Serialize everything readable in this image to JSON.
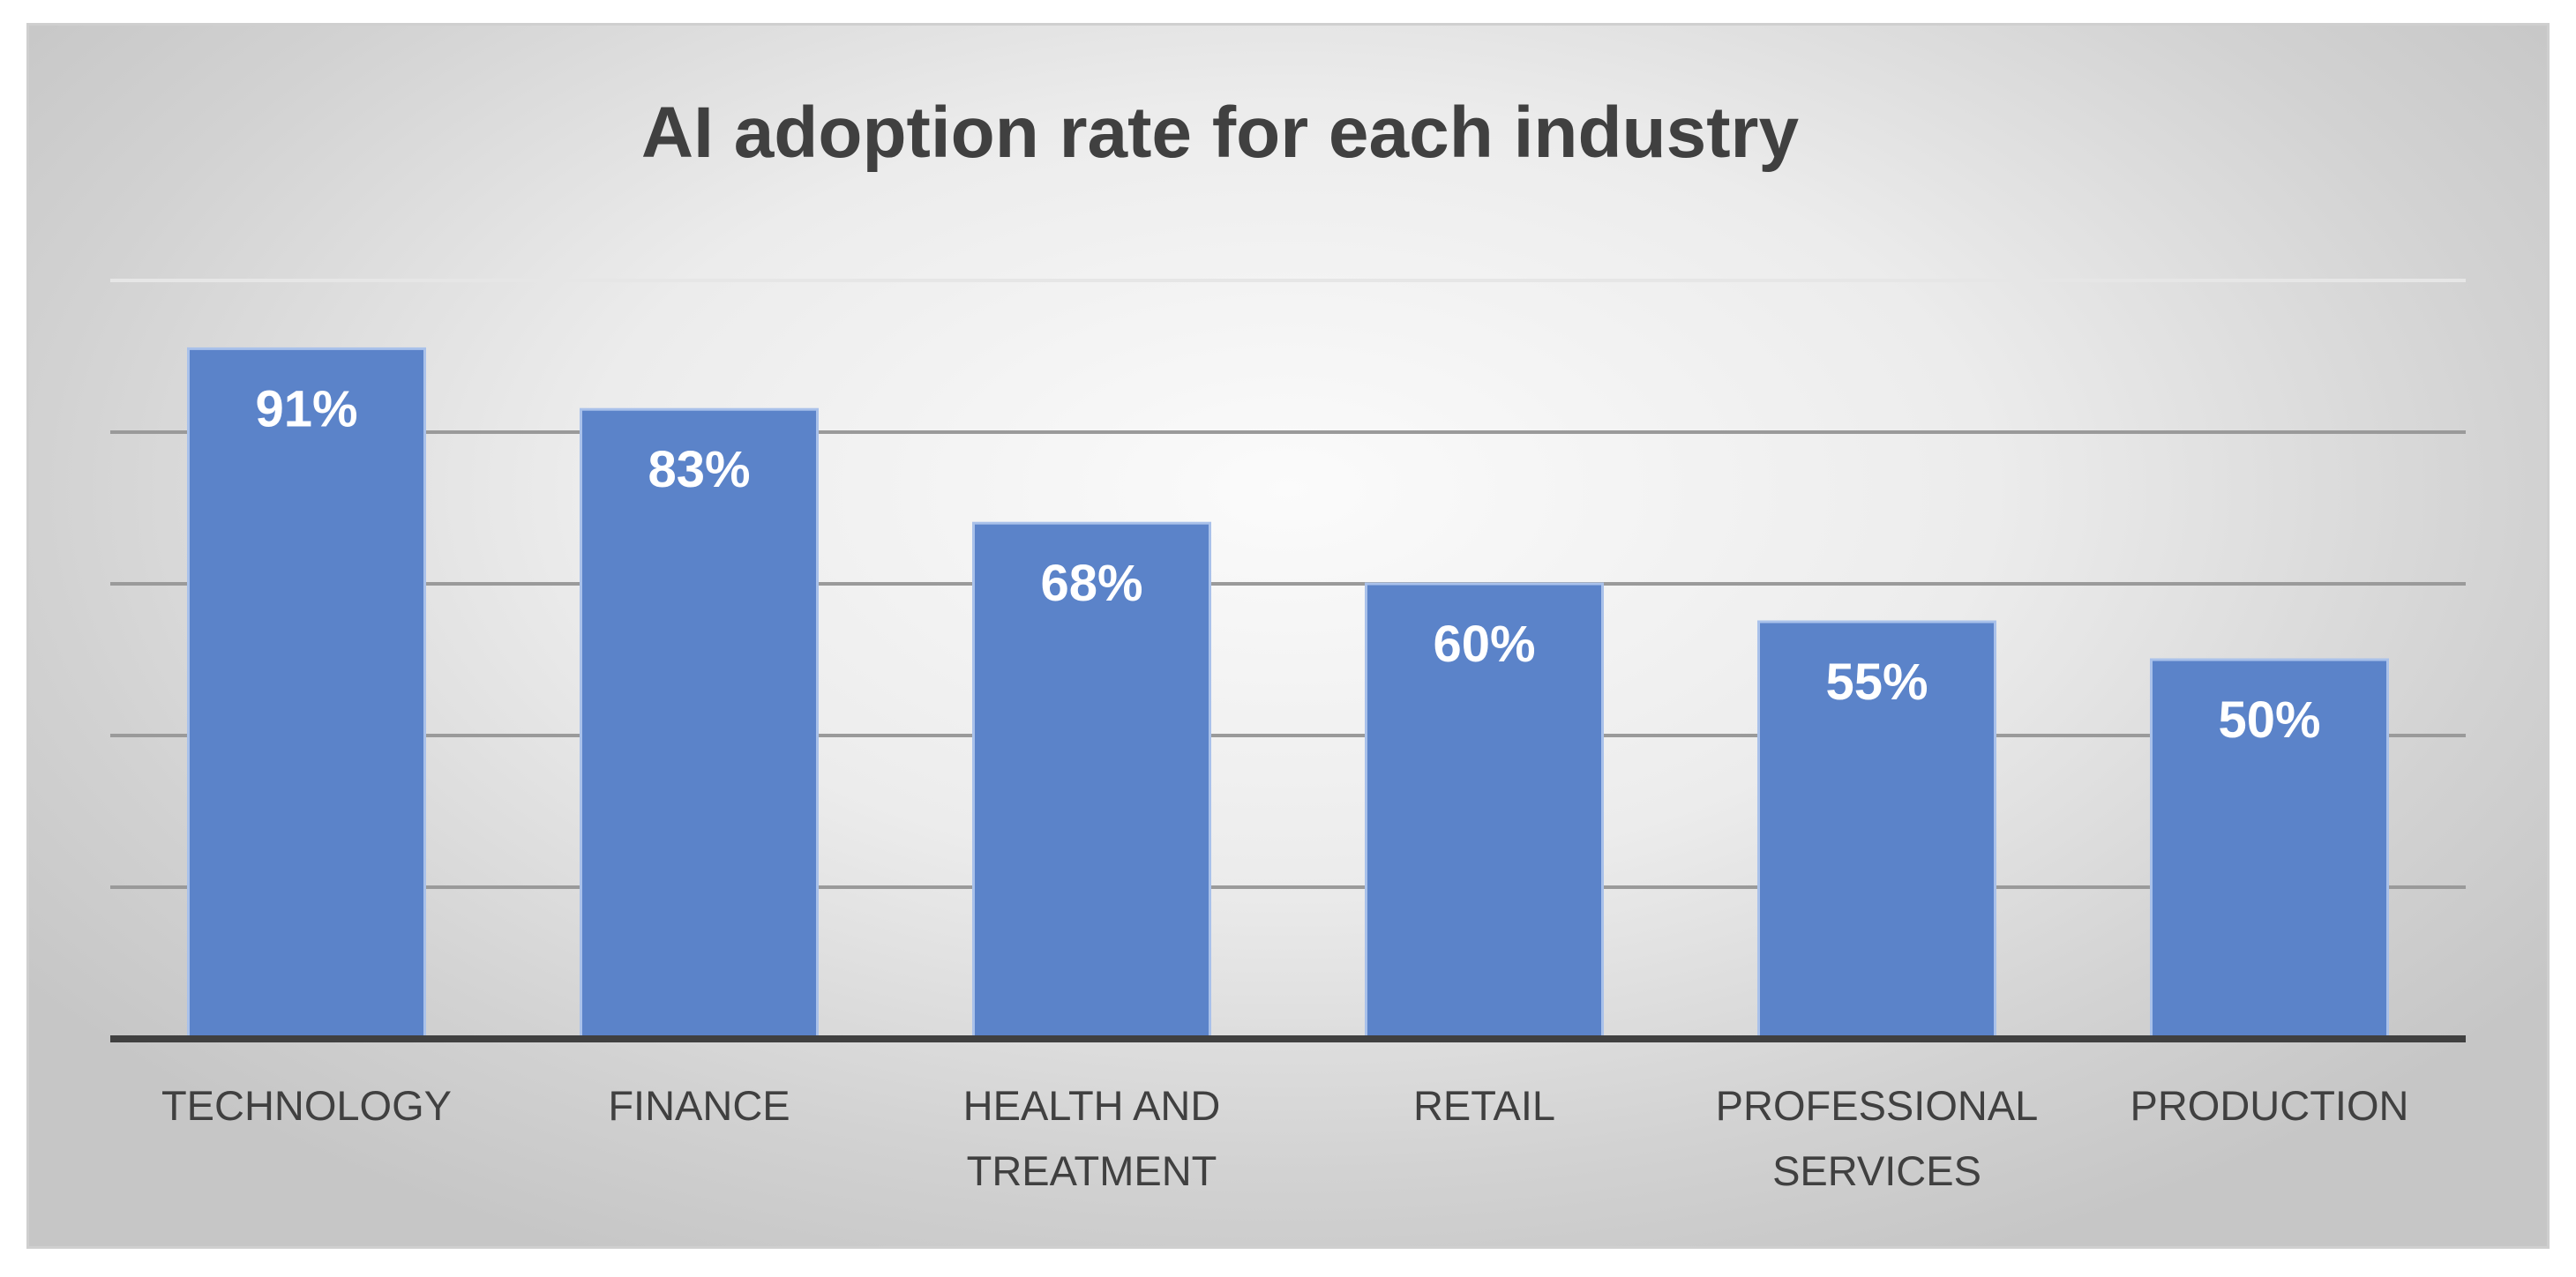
{
  "chart_data": {
    "type": "bar",
    "title": "AI adoption rate for each industry",
    "categories": [
      [
        "TECHNOLOGY"
      ],
      [
        "FINANCE"
      ],
      [
        "HEALTH AND",
        "TREATMENT"
      ],
      [
        "RETAIL"
      ],
      [
        "PROFESSIONAL",
        "SERVICES"
      ],
      [
        "PRODUCTION"
      ]
    ],
    "values": [
      91,
      83,
      68,
      60,
      55,
      50
    ],
    "data_labels": [
      "91%",
      "83%",
      "68%",
      "60%",
      "55%",
      "50%"
    ],
    "ylim": [
      0,
      100
    ],
    "ytick_step": 20,
    "grid": true,
    "xlabel": "",
    "ylabel": "",
    "legend": "none",
    "colors": {
      "bar": "#5b83c9",
      "bar_border": "#a9c1ea",
      "gridline": "#9a9a9a",
      "axis": "#404040",
      "title": "#404040",
      "data_label": "#ffffff"
    }
  }
}
